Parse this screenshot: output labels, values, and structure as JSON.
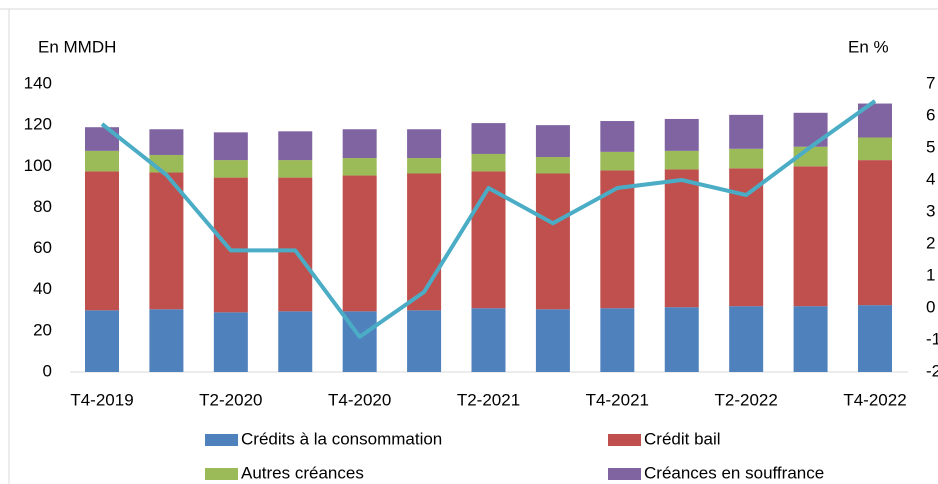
{
  "chart_data": {
    "type": "bar",
    "y_label": "En MMDH",
    "y2_label": "En %",
    "categories": [
      "T4-2019",
      null,
      "T2-2020",
      null,
      "T4-2020",
      null,
      "T2-2021",
      null,
      "T4-2021",
      null,
      "T2-2022",
      null,
      "T4-2022"
    ],
    "stacked": true,
    "series": [
      {
        "name": "Crédits à la consommation",
        "color": "#4f81bd",
        "values": [
          30,
          30.5,
          29,
          29.5,
          29.5,
          30,
          31,
          30.5,
          31,
          31.5,
          32,
          32,
          32.5
        ]
      },
      {
        "name": "Crédit bail",
        "color": "#c0504d",
        "values": [
          67.5,
          66.5,
          65.5,
          65,
          66,
          66.5,
          66.5,
          66,
          67,
          67,
          67,
          68,
          70.5
        ]
      },
      {
        "name": "Autres créances",
        "color": "#9bbb59",
        "values": [
          10,
          8.5,
          8.5,
          8.5,
          8.5,
          7.5,
          8.5,
          8,
          9,
          9,
          9.5,
          9.5,
          11
        ]
      },
      {
        "name": "Créances en souffrance",
        "color": "#8064a2",
        "values": [
          11.5,
          12.5,
          13.5,
          14,
          14,
          14,
          15,
          15.5,
          15,
          15.5,
          16.5,
          16.5,
          16.5
        ]
      },
      {
        "type": "line",
        "axis": "y2",
        "color": "#4bacc6",
        "values": [
          5.75,
          4.16,
          1.8,
          1.8,
          -0.9,
          0.5,
          3.75,
          2.65,
          3.75,
          4.0,
          3.53,
          5.03,
          6.47
        ]
      }
    ],
    "ylim": [
      0,
      140
    ],
    "yticks": [
      0,
      20,
      40,
      60,
      80,
      100,
      120,
      140
    ],
    "y2lim": [
      -2,
      7
    ],
    "y2ticks": [
      -2,
      -1,
      0,
      1,
      2,
      3,
      4,
      5,
      6,
      7
    ]
  }
}
